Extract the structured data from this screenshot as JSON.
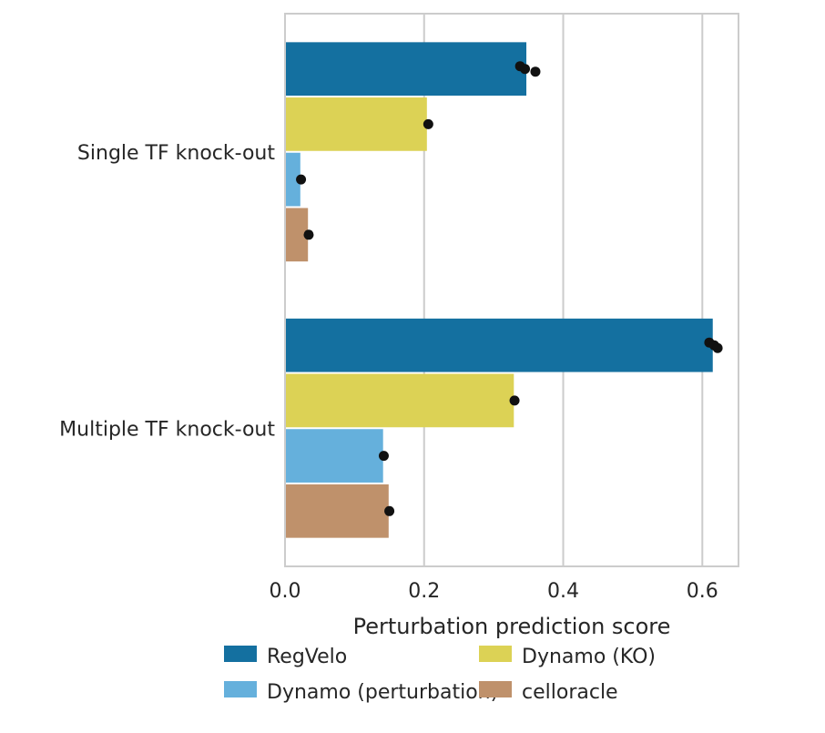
{
  "chart_data": {
    "type": "bar",
    "orientation": "horizontal",
    "categories": [
      "Single TF knock-out",
      "Multiple TF knock-out"
    ],
    "series": [
      {
        "name": "RegVelo",
        "values": [
          0.347,
          0.615
        ],
        "points": [
          [
            0.338,
            0.345,
            0.36
          ],
          [
            0.61,
            0.617,
            0.622
          ]
        ],
        "color": "#1470a0"
      },
      {
        "name": "Dynamo (KO)",
        "values": [
          0.204,
          0.329
        ],
        "points": [
          [
            0.206
          ],
          [
            0.33
          ]
        ],
        "color": "#dcd255"
      },
      {
        "name": "Dynamo (perturbation)",
        "values": [
          0.022,
          0.141
        ],
        "points": [
          [
            0.023
          ],
          [
            0.142
          ]
        ],
        "color": "#65b0dc"
      },
      {
        "name": "celloracle",
        "values": [
          0.033,
          0.149
        ],
        "points": [
          [
            0.034
          ],
          [
            0.15
          ]
        ],
        "color": "#bf916b"
      }
    ],
    "title": "",
    "xlabel": "Perturbation prediction score",
    "ylabel": "",
    "xlim": [
      0,
      0.652
    ],
    "xticks": [
      0.0,
      0.2,
      0.4,
      0.6
    ],
    "xtick_labels": [
      "0.0",
      "0.2",
      "0.4",
      "0.6"
    ],
    "grid": "vertical",
    "legend_placement": "bottom-center",
    "legend_columns": 2
  }
}
